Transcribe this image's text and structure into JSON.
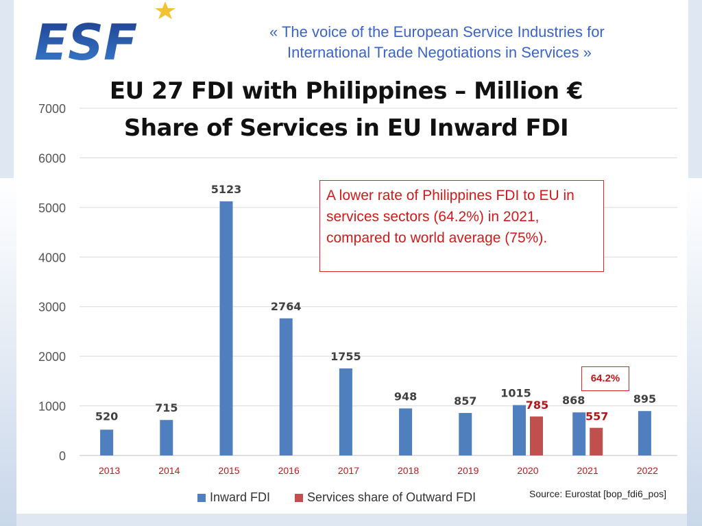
{
  "header": {
    "logo_text": "ESF",
    "tagline_line1": "«  The voice of the European Service Industries for",
    "tagline_line2": "International Trade Negotiations in Services  »"
  },
  "title": {
    "line1": "EU 27 FDI with Philippines – Million €",
    "line2": "Share of Services in EU Inward FDI"
  },
  "callout": {
    "text": "A lower rate of Philippines FDI to EU in services sectors (64.2%) in 2021, compared to world average (75%)."
  },
  "highlight": {
    "label": "64.2%"
  },
  "source": "Source: Eurostat [bop_fdi6_pos]",
  "colors": {
    "inward": "#4f7fbf",
    "services": "#c0504d",
    "year_labels": "#c0181b",
    "callout": "#d22222"
  },
  "chart_data": {
    "type": "bar",
    "title": "EU 27 FDI with Philippines – Million €",
    "categories": [
      "2013",
      "2014",
      "2015",
      "2016",
      "2017",
      "2018",
      "2019",
      "2020",
      "2021",
      "2022"
    ],
    "series": [
      {
        "name": "Inward FDI",
        "values": [
          520,
          715,
          5123,
          2764,
          1755,
          948,
          857,
          1015,
          868,
          895
        ]
      },
      {
        "name": "Services share of Outward FDI",
        "values": [
          null,
          null,
          null,
          null,
          null,
          null,
          null,
          785,
          557,
          null
        ]
      }
    ],
    "ylim": [
      0,
      7000
    ],
    "yticks": [
      "0",
      "1000",
      "2000",
      "3000",
      "4000",
      "5000",
      "6000",
      "7000"
    ],
    "grid": true,
    "legend": "bottom"
  }
}
